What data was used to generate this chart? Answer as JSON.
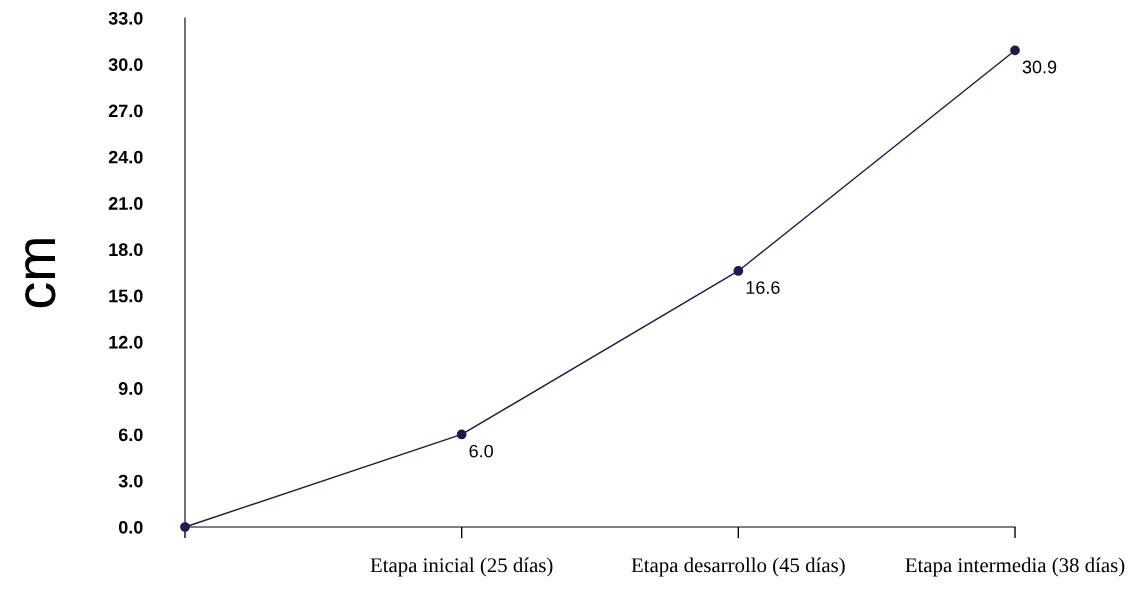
{
  "chart_data": {
    "type": "line",
    "ylabel": "cm",
    "categories": [
      null,
      "Etapa inicial (25 días)",
      "Etapa desarrollo (45 días)",
      "Etapa intermedia (38 días)"
    ],
    "series": [
      {
        "color": "#1c1c4a",
        "values": [
          0.0,
          6.0,
          16.6,
          30.9
        ],
        "value_labels": [
          null,
          "6.0",
          "16.6",
          "30.9"
        ]
      }
    ],
    "ylim": [
      0,
      33
    ],
    "yticks": [
      {
        "value": 0,
        "label": "0.0"
      },
      {
        "value": 3,
        "label": "3.0"
      },
      {
        "value": 6,
        "label": "6.0"
      },
      {
        "value": 9,
        "label": "9.0"
      },
      {
        "value": 12,
        "label": "12.0"
      },
      {
        "value": 15,
        "label": "15.0"
      },
      {
        "value": 18,
        "label": "18.0"
      },
      {
        "value": 21,
        "label": "21.0"
      },
      {
        "value": 24,
        "label": "24.0"
      },
      {
        "value": 27,
        "label": "27.0"
      },
      {
        "value": 30,
        "label": "30.0"
      },
      {
        "value": 33,
        "label": "33.0"
      }
    ],
    "marker": "circle",
    "line_style": "solid",
    "grid": false,
    "legend": false
  }
}
